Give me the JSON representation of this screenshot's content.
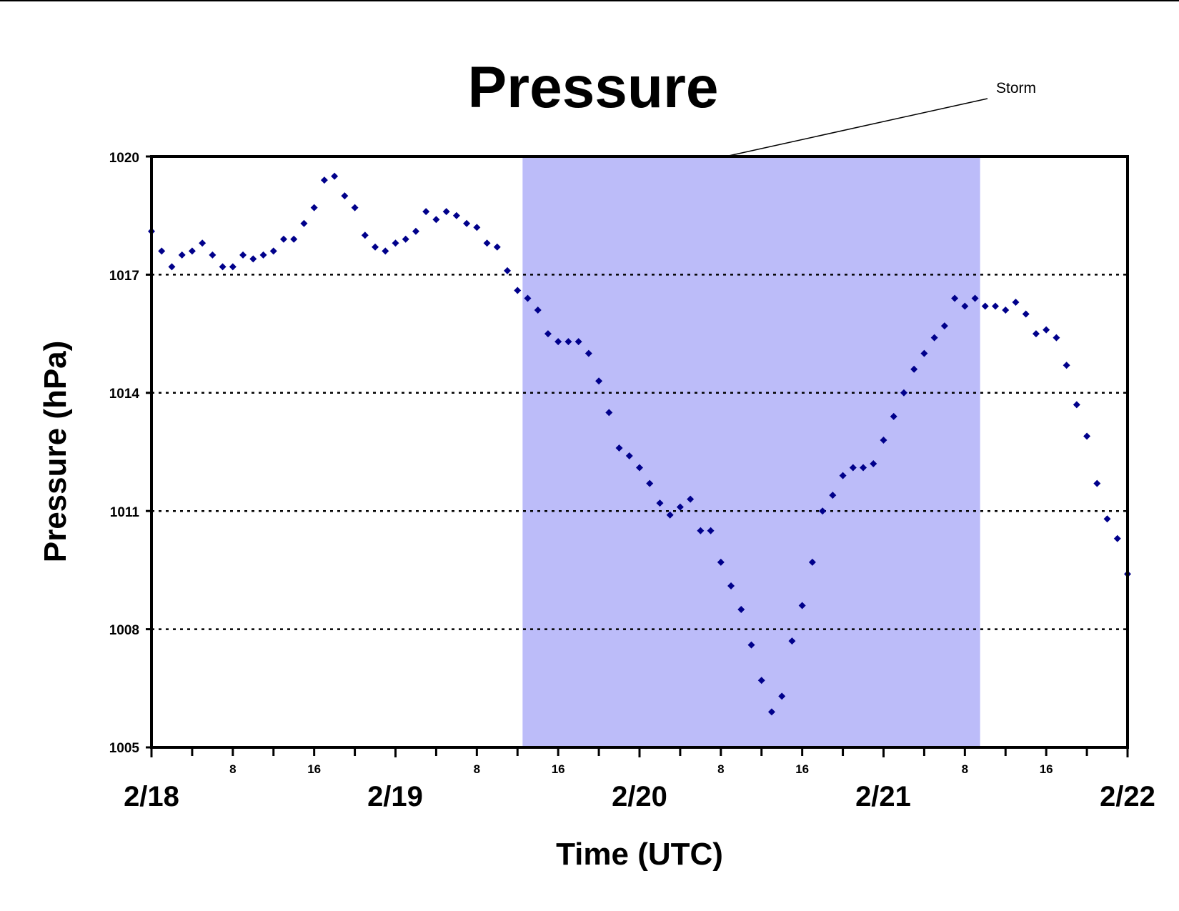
{
  "chart_data": {
    "type": "scatter",
    "title": "Pressure",
    "xlabel": "Time (UTC)",
    "ylabel": "Pressure (hPa)",
    "ylim": [
      1005,
      1020
    ],
    "yticks": [
      "1020",
      "1017",
      "1014",
      "1011",
      "1008",
      "1005"
    ],
    "xlim_hours": [
      0,
      96
    ],
    "x_major_labels": [
      "2/18",
      "2/19",
      "2/20",
      "2/21",
      "2/22"
    ],
    "x_minor_labels": [
      "8",
      "16"
    ],
    "grid": "dotted horizontal at 1008, 1011, 1014, 1017",
    "marker_color": "#00008b",
    "shade_color": "#bcbcf9",
    "annotation": "Storm",
    "shaded_region_hours": [
      36.5,
      81.5
    ],
    "series": [
      {
        "x_hours": [
          0,
          1,
          2,
          3,
          4,
          5,
          6,
          7,
          8,
          9,
          10,
          11,
          12,
          13,
          14,
          15,
          16,
          17,
          18,
          19,
          20,
          21,
          22,
          23,
          24,
          25,
          26,
          27,
          28,
          29,
          30,
          31,
          32,
          33,
          34,
          35,
          36,
          37,
          38,
          39,
          40,
          41,
          42,
          43,
          44,
          45,
          46,
          47,
          48,
          49,
          50,
          51,
          52,
          53,
          54,
          55,
          56,
          57,
          58,
          59,
          60,
          61,
          62,
          63,
          64,
          65,
          66,
          67,
          68,
          69,
          70,
          71,
          72,
          73,
          74,
          75,
          76,
          77,
          78,
          79,
          80,
          81,
          82,
          83,
          84,
          85,
          86,
          87,
          88,
          89,
          90,
          91,
          92,
          93,
          94,
          95,
          96
        ],
        "values": [
          1018.1,
          1017.6,
          1017.2,
          1017.5,
          1017.6,
          1017.8,
          1017.5,
          1017.2,
          1017.2,
          1017.5,
          1017.4,
          1017.5,
          1017.6,
          1017.9,
          1017.9,
          1018.3,
          1018.7,
          1019.4,
          1019.5,
          1019.0,
          1018.7,
          1018.0,
          1017.7,
          1017.6,
          1017.8,
          1017.9,
          1018.1,
          1018.6,
          1018.4,
          1018.6,
          1018.5,
          1018.3,
          1018.2,
          1017.8,
          1017.7,
          1017.1,
          1016.6,
          1016.4,
          1016.1,
          1015.5,
          1015.3,
          1015.3,
          1015.3,
          1015.0,
          1014.3,
          1013.5,
          1012.6,
          1012.4,
          1012.1,
          1011.7,
          1011.2,
          1010.9,
          1011.1,
          1011.3,
          1010.5,
          1010.5,
          1009.7,
          1009.1,
          1008.5,
          1007.6,
          1006.7,
          1005.9,
          1006.3,
          1007.7,
          1008.6,
          1009.7,
          1011.0,
          1011.4,
          1011.9,
          1012.1,
          1012.1,
          1012.2,
          1012.8,
          1013.4,
          1014.0,
          1014.6,
          1015.0,
          1015.4,
          1015.7,
          1016.4,
          1016.2,
          1016.4,
          1016.2,
          1016.2,
          1016.1,
          1016.3,
          1016.0,
          1015.5,
          1015.6,
          1015.4,
          1014.7,
          1013.7,
          1012.9,
          1011.7,
          1010.8,
          1010.3,
          1009.4
        ]
      }
    ]
  }
}
